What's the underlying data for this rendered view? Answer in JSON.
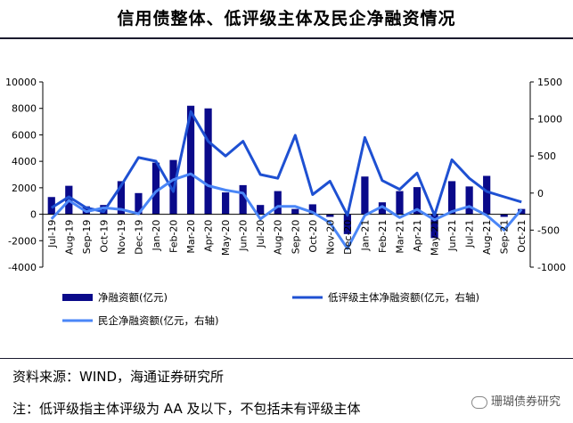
{
  "title": "信用债整体、低评级主体及民企净融资情况",
  "source": "资料来源：WIND，海通证券研究所",
  "note": "注：低评级指主体评级为 AA 及以下，不包括未有评级主体",
  "watermark": "珊瑚债券研究",
  "colors": {
    "bar": "#0a0a8a",
    "lowgrade": "#1e50d2",
    "private": "#4a86f7"
  },
  "chart_data": {
    "type": "bar",
    "categories": [
      "Jul-19",
      "Aug-19",
      "Sep-19",
      "Oct-19",
      "Nov-19",
      "Dec-19",
      "Jan-20",
      "Feb-20",
      "Mar-20",
      "Apr-20",
      "May-20",
      "Jun-20",
      "Jul-20",
      "Aug-20",
      "Sep-20",
      "Oct-20",
      "Nov-20",
      "Dec-20",
      "Jan-21",
      "Feb-21",
      "Mar-21",
      "Apr-21",
      "May-21",
      "Jun-21",
      "Jul-21",
      "Aug-21",
      "Sep-21",
      "Oct-21"
    ],
    "y_left": {
      "ylim": [
        -4000,
        10000
      ],
      "ticks": [
        -4000,
        -2000,
        0,
        2000,
        4000,
        6000,
        8000,
        10000
      ]
    },
    "y_right": {
      "ylim": [
        -1000,
        1500
      ],
      "ticks": [
        -1000,
        -500,
        0,
        500,
        1000,
        1500
      ]
    },
    "series": [
      {
        "name": "净融资额(亿元)",
        "type": "bar",
        "axis": "left",
        "values": [
          1300,
          2150,
          600,
          700,
          2500,
          1600,
          3900,
          4100,
          8200,
          8000,
          1650,
          2200,
          700,
          1750,
          400,
          750,
          -200,
          -1500,
          2850,
          900,
          1750,
          2050,
          -1800,
          2500,
          2100,
          2900,
          -200,
          400
        ]
      },
      {
        "name": "低评级主体净融资额(亿元，右轴)",
        "type": "line",
        "axis": "right",
        "values": [
          -200,
          -50,
          -200,
          -250,
          100,
          480,
          430,
          20,
          1100,
          700,
          500,
          700,
          250,
          200,
          780,
          -20,
          160,
          -300,
          750,
          170,
          50,
          270,
          -300,
          450,
          200,
          20,
          -50,
          -120
        ]
      },
      {
        "name": "民企净融资额(亿元，右轴)",
        "type": "line",
        "axis": "right",
        "values": [
          -350,
          -100,
          -250,
          -200,
          -220,
          -280,
          20,
          180,
          260,
          100,
          40,
          0,
          -350,
          -180,
          -180,
          -260,
          -400,
          -750,
          -300,
          -180,
          -330,
          -220,
          -360,
          -250,
          -180,
          -300,
          -500,
          -220
        ]
      }
    ]
  }
}
